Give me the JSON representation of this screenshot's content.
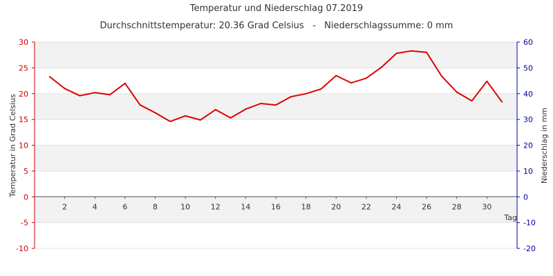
{
  "chart_data": {
    "type": "line",
    "title": "Temperatur und Niederschlag 07.2019",
    "subtitle": "Durchschnittstemperatur: 20.36 Grad Celsius   -   Niederschlagssumme: 0 mm",
    "xlabel": "Tag",
    "ylabel": "Temperatur in Grad Celsius",
    "y2label": "Niederschlag in mm",
    "xlim": [
      0,
      32
    ],
    "ylim": [
      -10,
      30
    ],
    "y2lim": [
      -20,
      60
    ],
    "x_ticks": [
      2,
      4,
      6,
      8,
      10,
      12,
      14,
      16,
      18,
      20,
      22,
      24,
      26,
      28,
      30
    ],
    "y_ticks": [
      -10,
      -5,
      0,
      5,
      10,
      15,
      20,
      25,
      30
    ],
    "y2_ticks": [
      -20,
      -10,
      0,
      10,
      20,
      30,
      40,
      50,
      60
    ],
    "grid": "horizontal bands",
    "colors": {
      "temperature": "#dd0000",
      "precipitation_axis": "#0000aa",
      "band": "#f2f2f2"
    },
    "series": [
      {
        "axis": "left",
        "x": [
          1,
          2,
          3,
          4,
          5,
          6,
          7,
          8,
          9,
          10,
          11,
          12,
          13,
          14,
          15,
          16,
          17,
          18,
          19,
          20,
          21,
          22,
          23,
          24,
          25,
          26,
          27,
          28,
          29,
          30,
          31
        ],
        "values": [
          23.3,
          21.0,
          19.6,
          20.2,
          19.8,
          22.0,
          17.8,
          16.3,
          14.6,
          15.7,
          14.9,
          16.9,
          15.3,
          17.0,
          18.1,
          17.8,
          19.4,
          20.0,
          20.9,
          23.5,
          22.1,
          23.0,
          25.1,
          27.8,
          28.3,
          28.0,
          23.4,
          20.3,
          18.6,
          22.4,
          18.4
        ]
      }
    ]
  }
}
